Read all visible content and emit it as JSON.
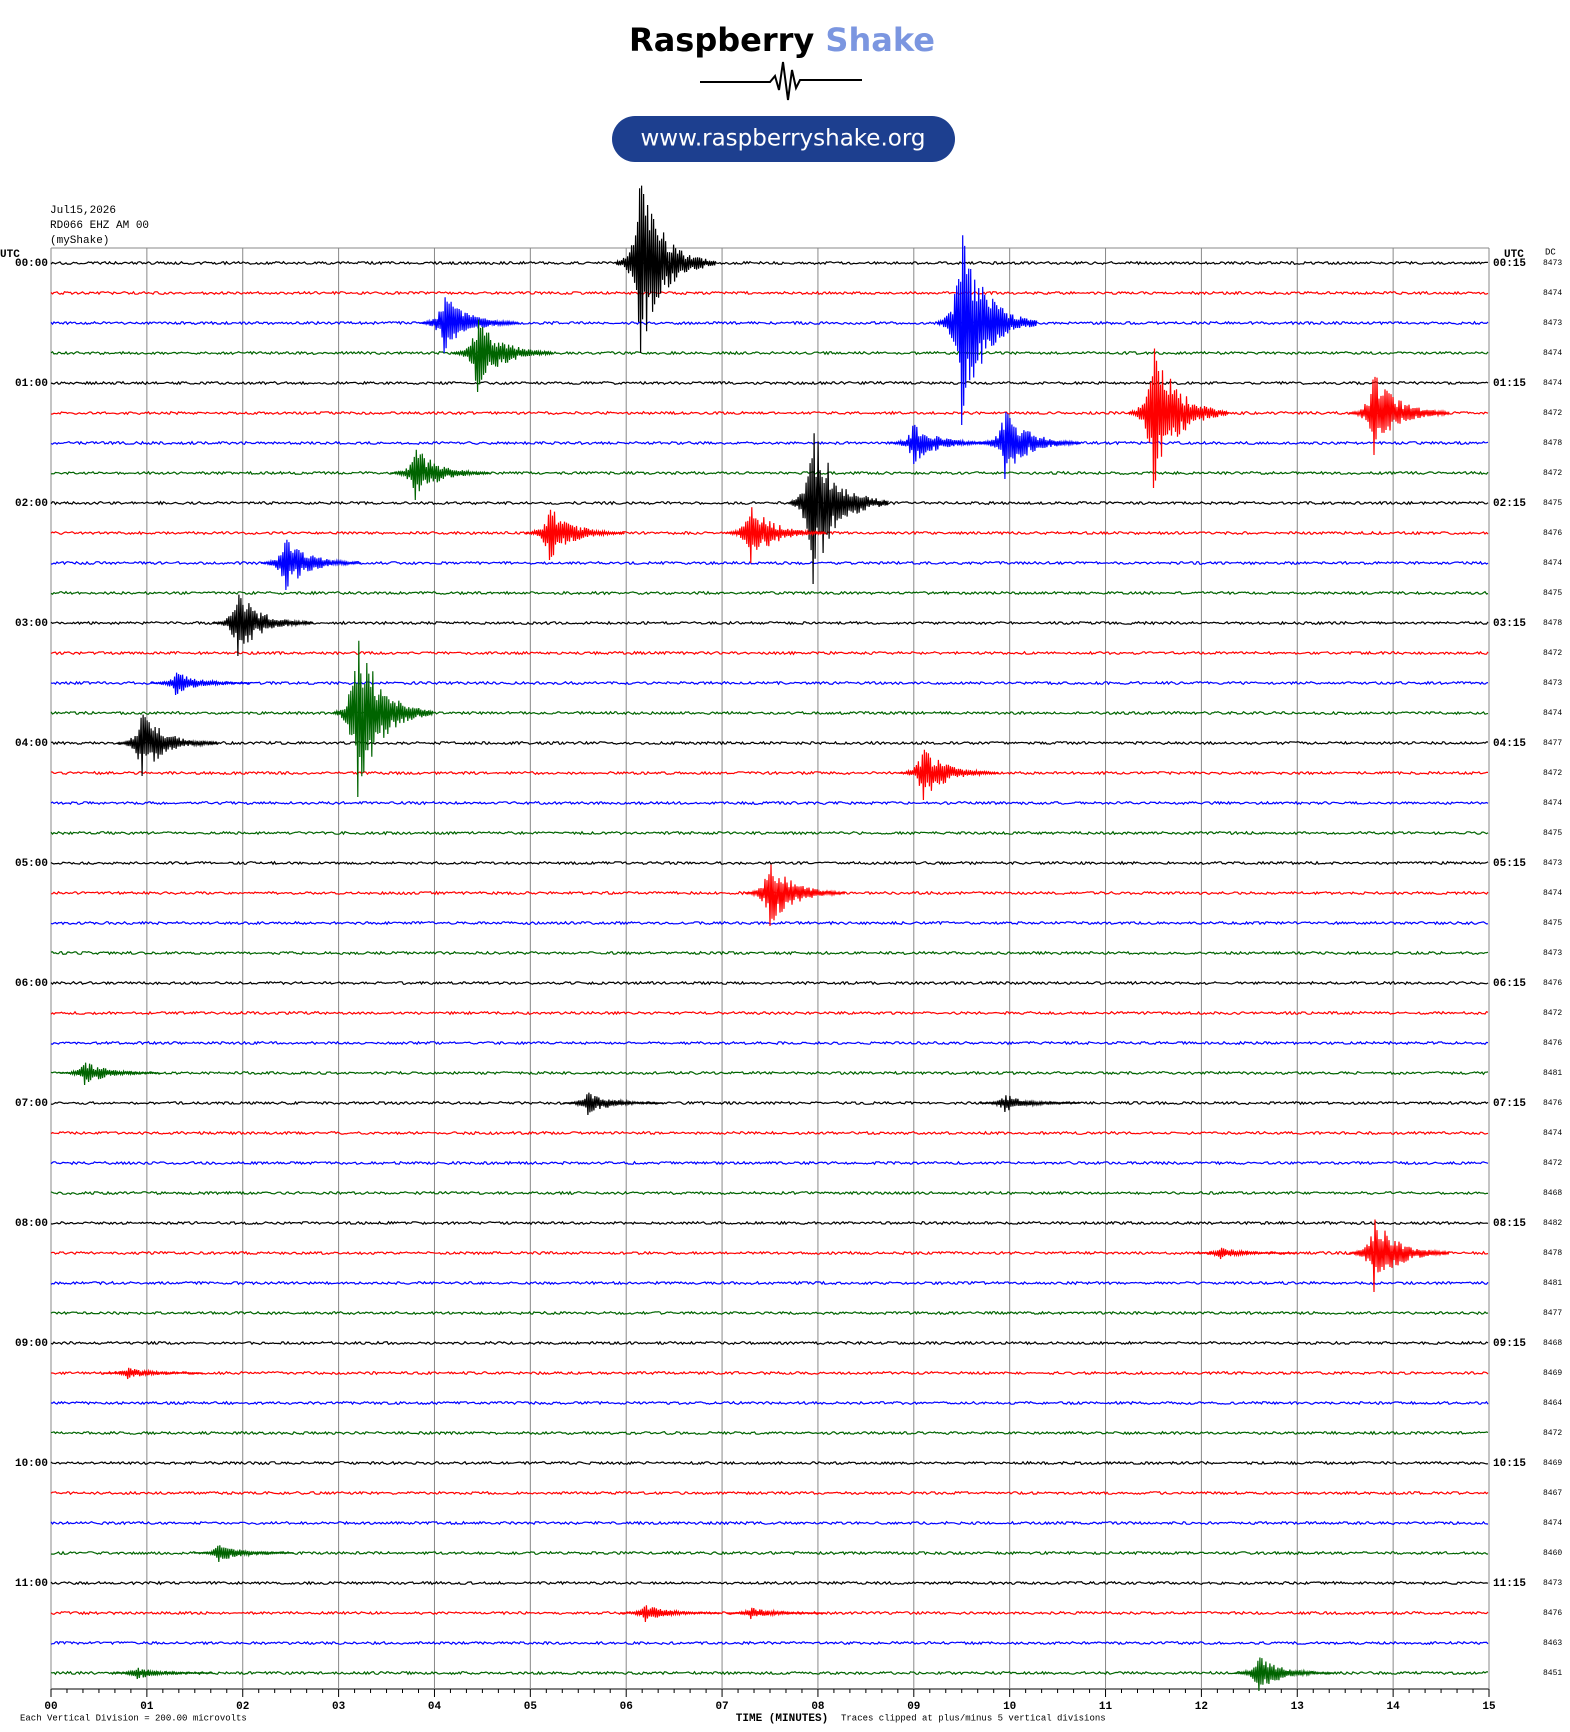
{
  "header": {
    "brand_1": "Raspberry",
    "brand_2": "Shake",
    "url": "www.raspberryshake.org"
  },
  "chart_data": {
    "type": "helicorder",
    "date": "Jul15,2026",
    "station": "RD066 EHZ AM 00",
    "network": "(myShake)",
    "left_axis_title": "UTC",
    "right_axis_title": "UTC",
    "dc_title": "DC",
    "xlabel": "TIME (MINUTES)",
    "scale_note": "Each Vertical Division =  200.00 microvolts",
    "clip_note": "Traces clipped at plus/minus 5 vertical divisions",
    "xlim": [
      0,
      15
    ],
    "xticks": [
      {
        "value": 0,
        "label": "00"
      },
      {
        "value": 1,
        "label": "01"
      },
      {
        "value": 2,
        "label": "02"
      },
      {
        "value": 3,
        "label": "03"
      },
      {
        "value": 4,
        "label": "04"
      },
      {
        "value": 5,
        "label": "05"
      },
      {
        "value": 6,
        "label": "06"
      },
      {
        "value": 7,
        "label": "07"
      },
      {
        "value": 8,
        "label": "08"
      },
      {
        "value": 9,
        "label": "09"
      },
      {
        "value": 10,
        "label": "10"
      },
      {
        "value": 11,
        "label": "11"
      },
      {
        "value": 12,
        "label": "12"
      },
      {
        "value": 13,
        "label": "13"
      },
      {
        "value": 14,
        "label": "14"
      },
      {
        "value": 15,
        "label": "15"
      }
    ],
    "grid": true,
    "colors": [
      "#000000",
      "#ff0000",
      "#0000ff",
      "#006400"
    ],
    "left_labels": [
      "00:00",
      "01:00",
      "02:00",
      "03:00",
      "04:00",
      "05:00",
      "06:00",
      "07:00",
      "08:00",
      "09:00",
      "10:00",
      "11:00"
    ],
    "right_labels": [
      "00:15",
      "01:15",
      "02:15",
      "03:15",
      "04:15",
      "05:15",
      "06:15",
      "07:15",
      "08:15",
      "09:15",
      "10:15",
      "11:15"
    ],
    "dc": [
      8473,
      8474,
      8473,
      8474,
      8474,
      8472,
      8478,
      8472,
      8475,
      8476,
      8474,
      8475,
      8478,
      8472,
      8473,
      8474,
      8477,
      8472,
      8474,
      8475,
      8473,
      8474,
      8475,
      8473,
      8476,
      8472,
      8476,
      8481,
      8476,
      8474,
      8472,
      8468,
      8482,
      8478,
      8481,
      8477,
      8468,
      8469,
      8464,
      8472,
      8469,
      8467,
      8474,
      8460,
      8473,
      8476,
      8463,
      8451
    ],
    "events": [
      {
        "row": 0,
        "minute": 6.15,
        "amplitude": 3
      },
      {
        "row": 2,
        "minute": 4.1,
        "amplitude": 1
      },
      {
        "row": 3,
        "minute": 4.45,
        "amplitude": 1.3
      },
      {
        "row": 2,
        "minute": 9.5,
        "amplitude": 3.4
      },
      {
        "row": 5,
        "minute": 11.5,
        "amplitude": 2.5
      },
      {
        "row": 5,
        "minute": 13.8,
        "amplitude": 1.4
      },
      {
        "row": 6,
        "minute": 9,
        "amplitude": 0.7
      },
      {
        "row": 6,
        "minute": 9.95,
        "amplitude": 1.2
      },
      {
        "row": 7,
        "minute": 3.8,
        "amplitude": 0.9
      },
      {
        "row": 8,
        "minute": 7.95,
        "amplitude": 2.7
      },
      {
        "row": 9,
        "minute": 5.2,
        "amplitude": 0.9
      },
      {
        "row": 9,
        "minute": 7.3,
        "amplitude": 1
      },
      {
        "row": 10,
        "minute": 2.45,
        "amplitude": 0.9
      },
      {
        "row": 12,
        "minute": 1.95,
        "amplitude": 1.1
      },
      {
        "row": 14,
        "minute": 1.3,
        "amplitude": 0.4
      },
      {
        "row": 15,
        "minute": 3.2,
        "amplitude": 2.8
      },
      {
        "row": 16,
        "minute": 0.95,
        "amplitude": 1.1
      },
      {
        "row": 17,
        "minute": 9.1,
        "amplitude": 0.9
      },
      {
        "row": 21,
        "minute": 7.5,
        "amplitude": 1.1
      },
      {
        "row": 27,
        "minute": 0.35,
        "amplitude": 0.4
      },
      {
        "row": 28,
        "minute": 5.6,
        "amplitude": 0.4
      },
      {
        "row": 28,
        "minute": 9.95,
        "amplitude": 0.3
      },
      {
        "row": 33,
        "minute": 13.8,
        "amplitude": 1.3
      },
      {
        "row": 33,
        "minute": 12.2,
        "amplitude": 0.2
      },
      {
        "row": 37,
        "minute": 0.8,
        "amplitude": 0.2
      },
      {
        "row": 43,
        "minute": 1.75,
        "amplitude": 0.3
      },
      {
        "row": 45,
        "minute": 6.2,
        "amplitude": 0.3
      },
      {
        "row": 45,
        "minute": 7.3,
        "amplitude": 0.2
      },
      {
        "row": 47,
        "minute": 12.6,
        "amplitude": 0.6
      },
      {
        "row": 47,
        "minute": 0.9,
        "amplitude": 0.2
      }
    ]
  }
}
